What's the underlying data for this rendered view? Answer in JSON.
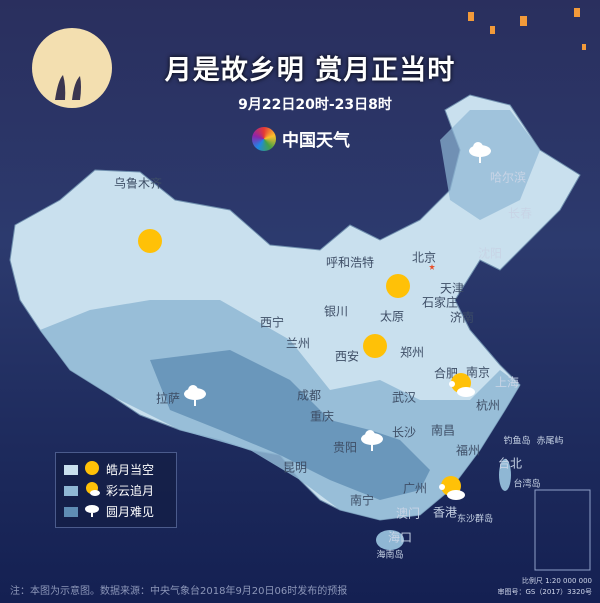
{
  "title": "月是故乡明 赏月正当时",
  "subtitle": "9月22日20时-23日8时",
  "logo_text": "中国天气",
  "colors": {
    "clear": "#c9e0ee",
    "partly": "#8fb7d4",
    "cloudy": "#5f8db4",
    "moon": "#ffc107",
    "capital_star": "#e8502a"
  },
  "cities": [
    "乌鲁木齐",
    "哈尔滨",
    "长春",
    "沈阳",
    "呼和浩特",
    "北京",
    "天津",
    "石家庄",
    "太原",
    "济南",
    "银川",
    "西宁",
    "兰州",
    "西安",
    "郑州",
    "合肥",
    "南京",
    "上海",
    "杭州",
    "武汉",
    "成都",
    "重庆",
    "拉萨",
    "长沙",
    "南昌",
    "福州",
    "贵阳",
    "昆明",
    "台北",
    "南宁",
    "广州",
    "香港",
    "澳门",
    "海口"
  ],
  "islands": [
    "钓鱼岛",
    "赤尾屿",
    "台湾岛",
    "东沙群岛",
    "海南岛"
  ],
  "weather_icons": [
    "full-moon",
    "full-moon",
    "full-moon",
    "moon-cloud",
    "moon-cloud",
    "cloud-rain",
    "cloud-rain",
    "cloud-rain"
  ],
  "legend": [
    {
      "label": "皓月当空",
      "icon": "full-moon"
    },
    {
      "label": "彩云追月",
      "icon": "moon-cloud"
    },
    {
      "label": "圆月难见",
      "icon": "cloud-rain"
    }
  ],
  "footer": {
    "note": "注：本图为示意图。数据来源：中央气象台2018年9月20日06时发布的预报",
    "scale": "比例尺 1:20 000 000",
    "approval": "审图号：GS（2017）3320号"
  }
}
